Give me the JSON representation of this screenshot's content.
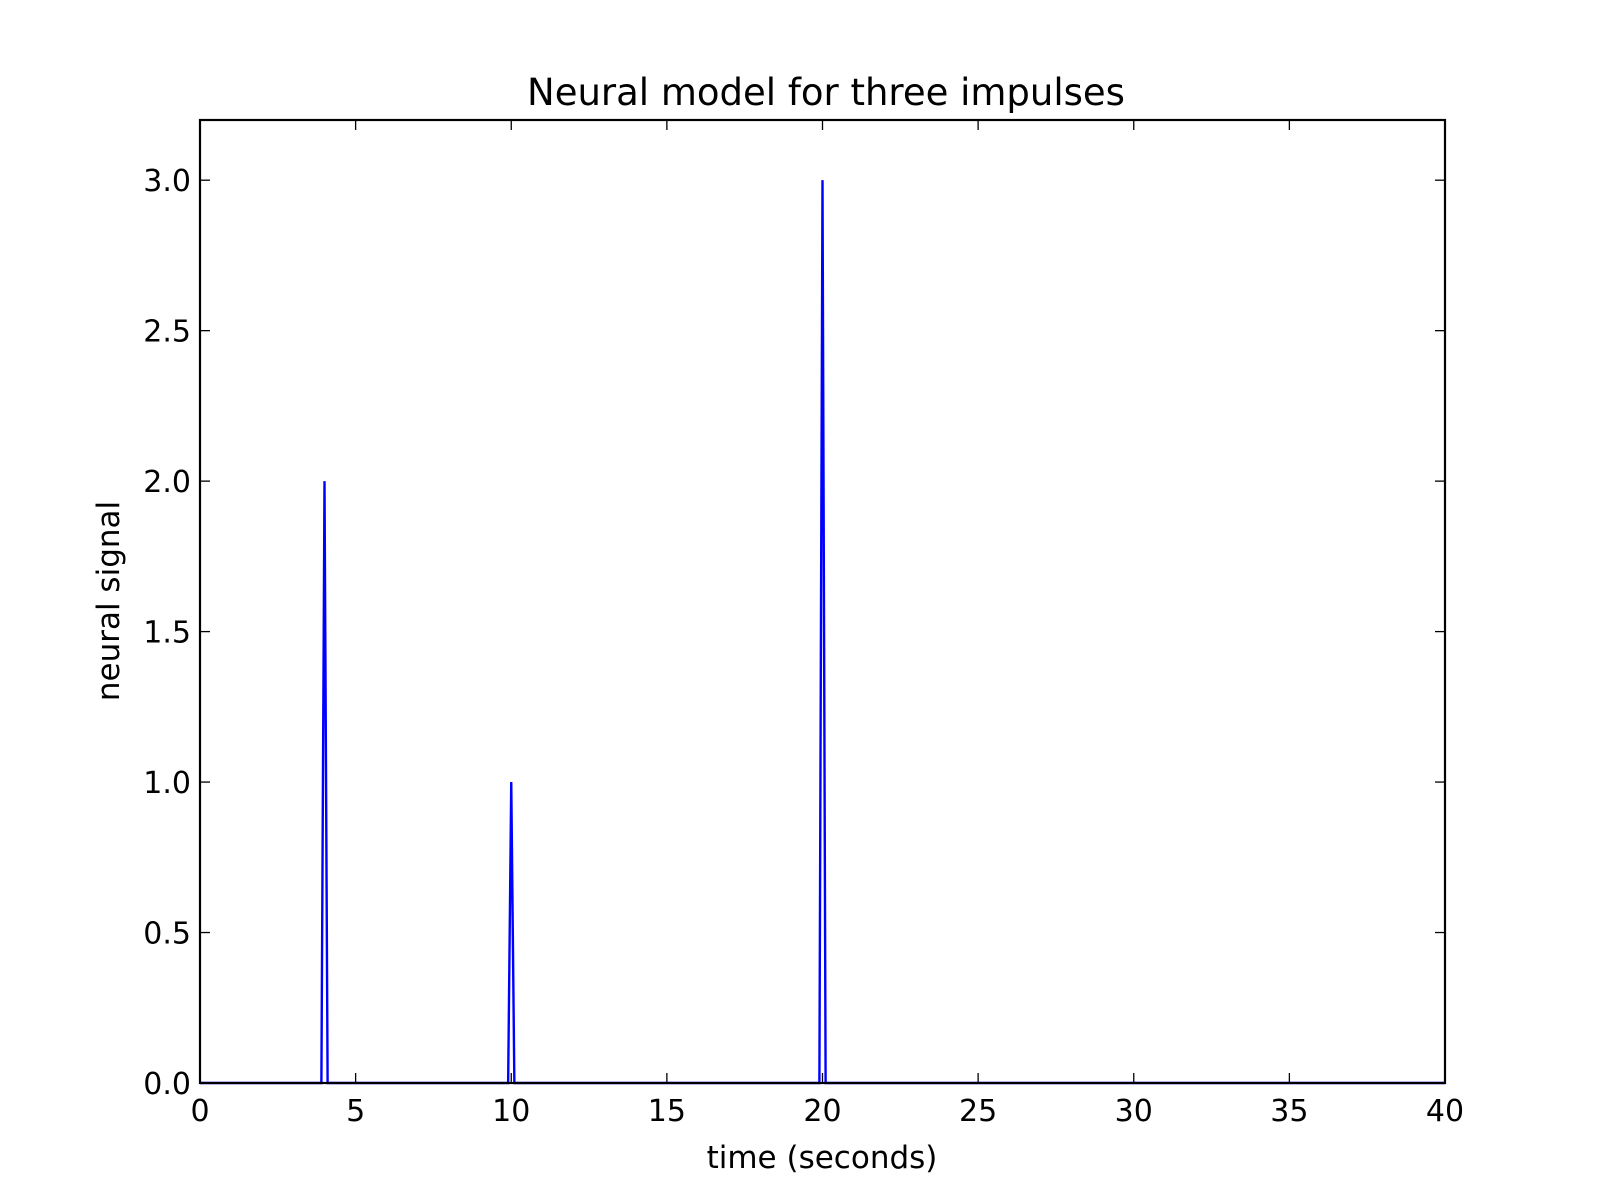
{
  "chart_data": {
    "type": "line",
    "title": "Neural model for three impulses",
    "xlabel": "time (seconds)",
    "ylabel": "neural signal",
    "xlim": [
      0,
      40
    ],
    "ylim": [
      0,
      3.2
    ],
    "grid": false,
    "x_ticks": [
      {
        "value": 0,
        "label": "0"
      },
      {
        "value": 5,
        "label": "5"
      },
      {
        "value": 10,
        "label": "10"
      },
      {
        "value": 15,
        "label": "15"
      },
      {
        "value": 20,
        "label": "20"
      },
      {
        "value": 25,
        "label": "25"
      },
      {
        "value": 30,
        "label": "30"
      },
      {
        "value": 35,
        "label": "35"
      },
      {
        "value": 40,
        "label": "40"
      }
    ],
    "y_ticks": [
      {
        "value": 0.0,
        "label": "0.0"
      },
      {
        "value": 0.5,
        "label": "0.5"
      },
      {
        "value": 1.0,
        "label": "1.0"
      },
      {
        "value": 1.5,
        "label": "1.5"
      },
      {
        "value": 2.0,
        "label": "2.0"
      },
      {
        "value": 2.5,
        "label": "2.5"
      },
      {
        "value": 3.0,
        "label": "3.0"
      }
    ],
    "series": [
      {
        "color": "#0000ff",
        "x": [
          0,
          3.9,
          4.0,
          4.1,
          9.9,
          10.0,
          10.1,
          19.9,
          20.0,
          20.1,
          40
        ],
        "y": [
          0,
          0,
          2.0,
          0,
          0,
          1.0,
          0,
          0,
          3.0,
          0,
          0
        ]
      }
    ]
  }
}
